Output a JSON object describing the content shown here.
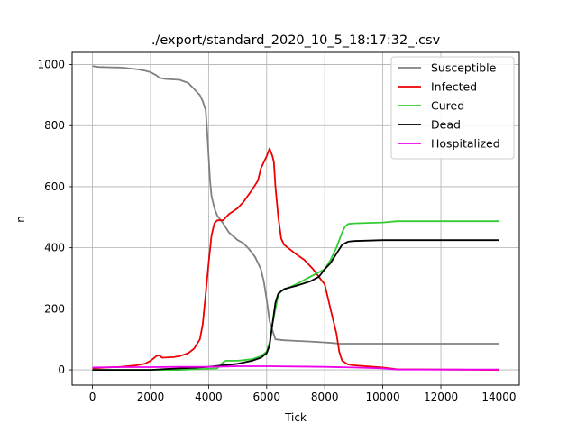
{
  "chart_data": {
    "type": "line",
    "title": "./export/standard_2020_10_5_18:17:32_.csv",
    "xlabel": "Tick",
    "ylabel": "n",
    "xlim": [
      -700,
      14700
    ],
    "ylim": [
      -50,
      1040
    ],
    "xticks": [
      0,
      2000,
      4000,
      6000,
      8000,
      10000,
      12000,
      14000
    ],
    "yticks": [
      0,
      200,
      400,
      600,
      800,
      1000
    ],
    "xtick_labels": [
      "0",
      "2000",
      "4000",
      "6000",
      "8000",
      "10000",
      "12000",
      "14000"
    ],
    "ytick_labels": [
      "0",
      "200",
      "400",
      "600",
      "800",
      "1000"
    ],
    "grid": true,
    "legend_position": "top-right",
    "series": [
      {
        "name": "Susceptible",
        "color": "#808080",
        "points": [
          [
            0,
            995
          ],
          [
            200,
            992
          ],
          [
            1000,
            990
          ],
          [
            1500,
            985
          ],
          [
            1800,
            980
          ],
          [
            2000,
            975
          ],
          [
            2200,
            965
          ],
          [
            2300,
            957
          ],
          [
            2500,
            953
          ],
          [
            3000,
            950
          ],
          [
            3300,
            940
          ],
          [
            3500,
            920
          ],
          [
            3700,
            900
          ],
          [
            3800,
            880
          ],
          [
            3900,
            850
          ],
          [
            3950,
            780
          ],
          [
            4000,
            700
          ],
          [
            4050,
            620
          ],
          [
            4100,
            570
          ],
          [
            4200,
            530
          ],
          [
            4300,
            505
          ],
          [
            4500,
            480
          ],
          [
            4700,
            450
          ],
          [
            5000,
            425
          ],
          [
            5200,
            415
          ],
          [
            5400,
            395
          ],
          [
            5600,
            370
          ],
          [
            5800,
            330
          ],
          [
            5900,
            290
          ],
          [
            6000,
            230
          ],
          [
            6100,
            160
          ],
          [
            6200,
            130
          ],
          [
            6300,
            100
          ],
          [
            6600,
            97
          ],
          [
            7000,
            95
          ],
          [
            7500,
            93
          ],
          [
            8000,
            90
          ],
          [
            8300,
            88
          ],
          [
            8500,
            86
          ],
          [
            9000,
            86
          ],
          [
            10000,
            86
          ],
          [
            12000,
            86
          ],
          [
            14000,
            86
          ]
        ]
      },
      {
        "name": "Infected",
        "color": "#ee0000",
        "points": [
          [
            0,
            5
          ],
          [
            500,
            8
          ],
          [
            1000,
            10
          ],
          [
            1500,
            15
          ],
          [
            1800,
            20
          ],
          [
            2000,
            30
          ],
          [
            2200,
            45
          ],
          [
            2300,
            48
          ],
          [
            2400,
            40
          ],
          [
            2800,
            42
          ],
          [
            3000,
            45
          ],
          [
            3300,
            55
          ],
          [
            3500,
            70
          ],
          [
            3700,
            100
          ],
          [
            3800,
            150
          ],
          [
            3900,
            250
          ],
          [
            4000,
            350
          ],
          [
            4100,
            440
          ],
          [
            4200,
            480
          ],
          [
            4300,
            490
          ],
          [
            4500,
            490
          ],
          [
            4700,
            510
          ],
          [
            5000,
            530
          ],
          [
            5200,
            550
          ],
          [
            5500,
            590
          ],
          [
            5700,
            620
          ],
          [
            5800,
            660
          ],
          [
            5900,
            680
          ],
          [
            6000,
            700
          ],
          [
            6100,
            725
          ],
          [
            6200,
            700
          ],
          [
            6250,
            680
          ],
          [
            6300,
            600
          ],
          [
            6400,
            500
          ],
          [
            6500,
            430
          ],
          [
            6600,
            410
          ],
          [
            7000,
            380
          ],
          [
            7300,
            360
          ],
          [
            7600,
            330
          ],
          [
            8000,
            280
          ],
          [
            8200,
            200
          ],
          [
            8400,
            120
          ],
          [
            8500,
            60
          ],
          [
            8600,
            30
          ],
          [
            8800,
            18
          ],
          [
            9000,
            15
          ],
          [
            10000,
            8
          ],
          [
            10500,
            2
          ],
          [
            14000,
            0
          ]
        ]
      },
      {
        "name": "Cured",
        "color": "#33cc33",
        "points": [
          [
            0,
            0
          ],
          [
            3000,
            0
          ],
          [
            4300,
            5
          ],
          [
            4500,
            25
          ],
          [
            4600,
            30
          ],
          [
            5000,
            30
          ],
          [
            5500,
            35
          ],
          [
            5800,
            45
          ],
          [
            6000,
            60
          ],
          [
            6100,
            90
          ],
          [
            6200,
            150
          ],
          [
            6300,
            200
          ],
          [
            6400,
            245
          ],
          [
            6500,
            258
          ],
          [
            7000,
            280
          ],
          [
            7500,
            305
          ],
          [
            8000,
            330
          ],
          [
            8200,
            360
          ],
          [
            8400,
            400
          ],
          [
            8600,
            450
          ],
          [
            8700,
            470
          ],
          [
            8800,
            478
          ],
          [
            9000,
            480
          ],
          [
            10000,
            483
          ],
          [
            10500,
            487
          ],
          [
            14000,
            487
          ]
        ]
      },
      {
        "name": "Dead",
        "color": "#000000",
        "points": [
          [
            0,
            0
          ],
          [
            2000,
            0
          ],
          [
            2500,
            3
          ],
          [
            3500,
            7
          ],
          [
            4000,
            10
          ],
          [
            5000,
            20
          ],
          [
            5500,
            30
          ],
          [
            5800,
            40
          ],
          [
            6000,
            55
          ],
          [
            6100,
            80
          ],
          [
            6200,
            150
          ],
          [
            6300,
            220
          ],
          [
            6400,
            250
          ],
          [
            6600,
            265
          ],
          [
            7000,
            275
          ],
          [
            7500,
            290
          ],
          [
            7800,
            305
          ],
          [
            8000,
            330
          ],
          [
            8200,
            350
          ],
          [
            8400,
            380
          ],
          [
            8600,
            410
          ],
          [
            8800,
            420
          ],
          [
            9000,
            422
          ],
          [
            10000,
            425
          ],
          [
            14000,
            425
          ]
        ]
      },
      {
        "name": "Hospitalized",
        "color": "#ee00ee",
        "points": [
          [
            0,
            8
          ],
          [
            1000,
            9
          ],
          [
            2000,
            9
          ],
          [
            3000,
            10
          ],
          [
            4000,
            10
          ],
          [
            5000,
            12
          ],
          [
            6000,
            12
          ],
          [
            7000,
            11
          ],
          [
            8000,
            10
          ],
          [
            9000,
            8
          ],
          [
            10000,
            5
          ],
          [
            10500,
            1
          ],
          [
            14000,
            1
          ]
        ]
      }
    ]
  }
}
